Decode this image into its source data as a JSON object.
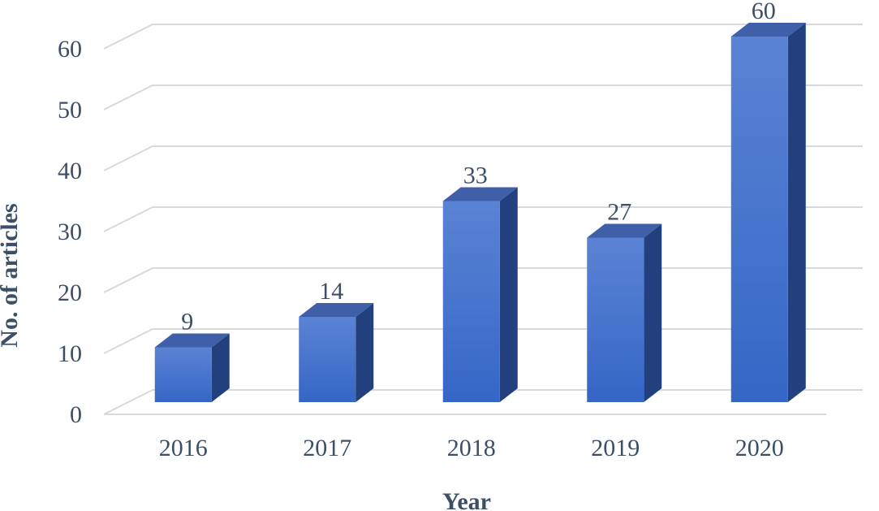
{
  "chart_data": {
    "type": "bar",
    "style": "3d-column",
    "categories": [
      "2016",
      "2017",
      "2018",
      "2019",
      "2020"
    ],
    "values": [
      9,
      14,
      33,
      27,
      60
    ],
    "data_labels": [
      "9",
      "14",
      "33",
      "27",
      "60"
    ],
    "xlabel": "Year",
    "ylabel": "No. of articles",
    "ylim": [
      0,
      60
    ],
    "yticks": [
      0,
      10,
      20,
      30,
      40,
      50,
      60
    ],
    "grid": true,
    "legend": "none",
    "colors": {
      "bar_front_top": "#5b83d4",
      "bar_front_bottom": "#3566c6",
      "bar_side": "#23407e",
      "bar_top": "#3f5fa8",
      "grid": "#d9d9d9",
      "text": "#3d4f66"
    }
  }
}
